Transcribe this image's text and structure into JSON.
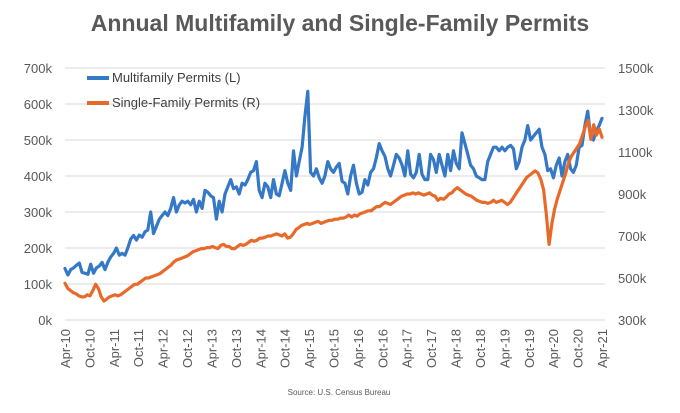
{
  "chart_data": {
    "type": "line",
    "title": "Annual Multifamily and Single-Family Permits",
    "source": "Source: U.S. Census Bureau",
    "grid": true,
    "legend": "top-left",
    "y_left": {
      "ylim": [
        0,
        700
      ],
      "ticks": [
        "0k",
        "100k",
        "200k",
        "300k",
        "400k",
        "500k",
        "600k",
        "700k"
      ]
    },
    "y_right": {
      "ylim": [
        300,
        1500
      ],
      "ticks": [
        "300k",
        "500k",
        "700k",
        "900k",
        "1100k",
        "1300k",
        "1500k"
      ]
    },
    "x_ticks": [
      "Apr-10",
      "Oct-10",
      "Apr-11",
      "Oct-11",
      "Apr-12",
      "Oct-12",
      "Apr-13",
      "Oct-13",
      "Apr-14",
      "Oct-14",
      "Apr-15",
      "Oct-15",
      "Apr-16",
      "Oct-16",
      "Apr-17",
      "Oct-17",
      "Apr-18",
      "Oct-18",
      "Apr-19",
      "Oct-19",
      "Apr-20",
      "Oct-20",
      "Apr-21"
    ],
    "x_start": "Apr-10",
    "series": [
      {
        "name": "Multifamily Permits (L)",
        "axis": "left",
        "color": "#3478c6",
        "values": [
          143,
          125,
          140,
          145,
          152,
          158,
          132,
          130,
          127,
          155,
          130,
          145,
          150,
          160,
          140,
          160,
          175,
          185,
          200,
          180,
          185,
          180,
          200,
          225,
          235,
          222,
          236,
          230,
          245,
          250,
          300,
          240,
          260,
          280,
          290,
          300,
          290,
          310,
          340,
          300,
          320,
          330,
          325,
          330,
          320,
          335,
          300,
          330,
          310,
          360,
          355,
          345,
          340,
          280,
          330,
          300,
          350,
          370,
          390,
          365,
          370,
          350,
          380,
          375,
          390,
          410,
          415,
          440,
          360,
          340,
          380,
          370,
          340,
          390,
          350,
          345,
          380,
          415,
          380,
          360,
          470,
          400,
          440,
          480,
          565,
          635,
          410,
          400,
          420,
          395,
          380,
          400,
          440,
          420,
          410,
          425,
          435,
          385,
          380,
          350,
          400,
          430,
          380,
          350,
          355,
          390,
          375,
          410,
          420,
          450,
          490,
          470,
          455,
          420,
          400,
          430,
          460,
          450,
          430,
          400,
          470,
          405,
          395,
          410,
          460,
          405,
          390,
          390,
          460,
          445,
          410,
          460,
          430,
          400,
          460,
          415,
          470,
          435,
          420,
          520,
          490,
          460,
          430,
          420,
          400,
          395,
          390,
          390,
          440,
          460,
          480,
          480,
          470,
          480,
          470,
          480,
          485,
          475,
          420,
          440,
          480,
          500,
          540,
          500,
          510,
          520,
          530,
          480,
          460,
          415,
          420,
          395,
          430,
          450,
          400,
          440,
          460,
          420,
          410,
          430,
          480,
          485,
          540,
          580,
          510,
          500,
          525,
          540,
          560
        ]
      },
      {
        "name": "Single-Family Permits (R)",
        "axis": "right",
        "color": "#e86a2b",
        "values": [
          475,
          450,
          440,
          430,
          425,
          415,
          410,
          410,
          420,
          415,
          440,
          470,
          450,
          410,
          390,
          400,
          410,
          415,
          420,
          415,
          420,
          430,
          440,
          450,
          460,
          470,
          470,
          480,
          490,
          500,
          500,
          505,
          510,
          515,
          520,
          530,
          540,
          550,
          560,
          575,
          585,
          590,
          595,
          600,
          605,
          615,
          625,
          630,
          635,
          640,
          640,
          645,
          645,
          650,
          645,
          640,
          655,
          660,
          650,
          650,
          640,
          640,
          650,
          660,
          655,
          660,
          670,
          680,
          675,
          680,
          690,
          690,
          695,
          700,
          700,
          705,
          710,
          705,
          700,
          710,
          690,
          695,
          710,
          730,
          740,
          750,
          755,
          760,
          755,
          760,
          765,
          770,
          760,
          765,
          770,
          775,
          775,
          780,
          780,
          785,
          785,
          790,
          800,
          790,
          800,
          795,
          805,
          810,
          815,
          820,
          820,
          830,
          840,
          840,
          850,
          860,
          855,
          850,
          860,
          870,
          880,
          890,
          895,
          900,
          900,
          905,
          900,
          905,
          900,
          895,
          900,
          905,
          895,
          890,
          870,
          880,
          875,
          885,
          900,
          905,
          920,
          930,
          920,
          910,
          900,
          895,
          890,
          880,
          870,
          865,
          860,
          860,
          855,
          860,
          870,
          860,
          865,
          870,
          860,
          850,
          860,
          880,
          900,
          920,
          940,
          960,
          980,
          990,
          1000,
          1010,
          1000,
          970,
          920,
          800,
          660,
          760,
          830,
          880,
          920,
          960,
          1000,
          1050,
          1080,
          1100,
          1120,
          1140,
          1180,
          1220,
          1250,
          1160,
          1230,
          1180,
          1210,
          1170
        ]
      }
    ]
  }
}
